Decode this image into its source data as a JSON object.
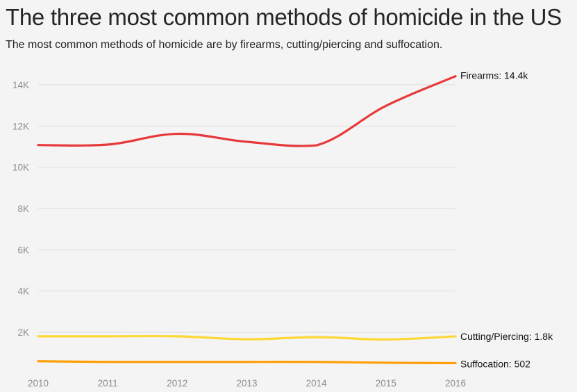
{
  "header": {
    "title": "The three most common methods of homicide in the US",
    "subtitle": "The most common methods of homicide are by firearms, cutting/piercing and suffocation."
  },
  "chart_data": {
    "type": "line",
    "title": "The three most common methods of homicide in the US",
    "subtitle": "The most common methods of homicide are by firearms, cutting/piercing and suffocation.",
    "x": [
      2010,
      2011,
      2012,
      2013,
      2014,
      2015,
      2016
    ],
    "x_tick_labels": [
      "2010",
      "2011",
      "2012",
      "2013",
      "2014",
      "2015",
      "2016"
    ],
    "y_ticks": [
      2000,
      4000,
      6000,
      8000,
      10000,
      12000,
      14000
    ],
    "y_tick_labels": [
      "2K",
      "4K",
      "6K",
      "8K",
      "10K",
      "12K",
      "14K"
    ],
    "ylim": [
      0,
      14500
    ],
    "grid": true,
    "series": [
      {
        "name": "Firearms",
        "values": [
          11078,
          11101,
          11622,
          11235,
          11062,
          12979,
          14415
        ],
        "color": "#e8393a",
        "end_label": "Firearms: 14.4k"
      },
      {
        "name": "Cutting/Piercing",
        "values": [
          1802,
          1802,
          1802,
          1660,
          1759,
          1650,
          1800
        ],
        "color": "#fdd835",
        "end_label": "Cutting/Piercing: 1.8k"
      },
      {
        "name": "Suffocation",
        "values": [
          593,
          560,
          560,
          560,
          560,
          520,
          502
        ],
        "color": "#ff9f0a",
        "end_label": "Suffocation: 502"
      }
    ]
  }
}
